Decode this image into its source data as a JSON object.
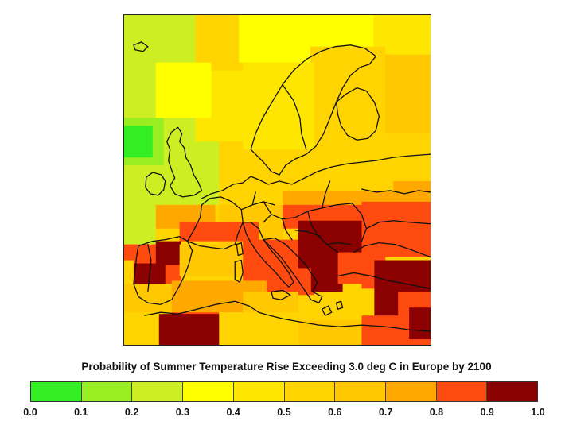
{
  "title": "Probability of Summer Temperature Rise Exceeding 3.0 deg C in Europe by 2100",
  "legend": {
    "ticks": [
      "0.0",
      "0.1",
      "0.2",
      "0.3",
      "0.4",
      "0.5",
      "0.6",
      "0.7",
      "0.8",
      "0.9",
      "1.0"
    ],
    "colors": [
      "#33ee22",
      "#99ee22",
      "#ccee22",
      "#ffff00",
      "#ffe600",
      "#ffd400",
      "#ffc800",
      "#ffa800",
      "#ff4a10",
      "#8b0000"
    ]
  },
  "map": {
    "region": "Europe",
    "gridded_probability_field": true,
    "coastlines": true,
    "country_borders": true
  }
}
